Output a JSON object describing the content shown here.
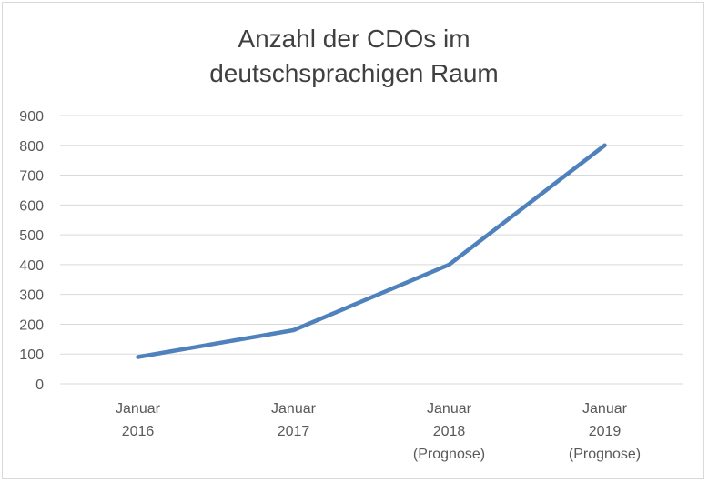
{
  "chart_data": {
    "type": "line",
    "title_lines": [
      "Anzahl der CDOs im",
      "deutschsprachigen Raum"
    ],
    "categories": [
      [
        "Januar",
        "2016"
      ],
      [
        "Januar",
        "2017"
      ],
      [
        "Januar",
        "2018",
        "(Prognose)"
      ],
      [
        "Januar",
        "2019",
        "(Prognose)"
      ]
    ],
    "series": [
      {
        "values": [
          90,
          180,
          400,
          800
        ],
        "color": "#4f81bd"
      }
    ],
    "ylim": [
      0,
      900
    ],
    "yticks": [
      "0",
      "100",
      "200",
      "300",
      "400",
      "500",
      "600",
      "700",
      "800",
      "900"
    ],
    "grid": true,
    "legend": "none"
  }
}
